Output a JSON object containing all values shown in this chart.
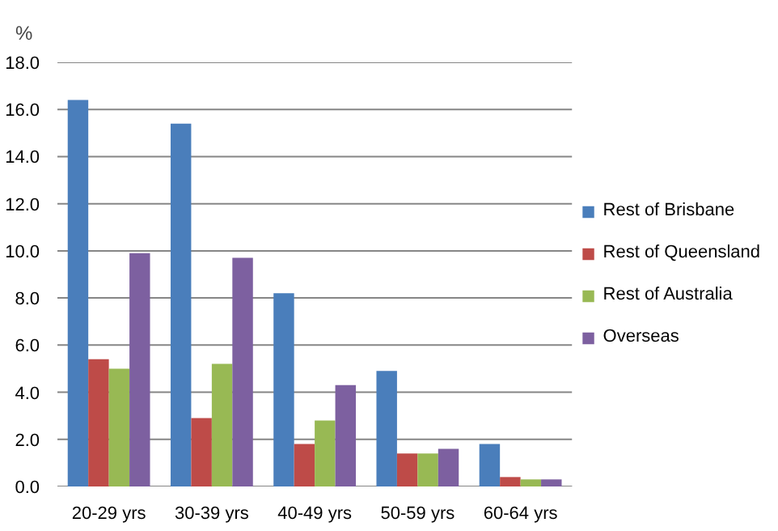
{
  "chart_data": {
    "type": "bar",
    "ylabel": "%",
    "categories": [
      "20-29 yrs",
      "30-39 yrs",
      "40-49 yrs",
      "50-59 yrs",
      "60-64 yrs"
    ],
    "series": [
      {
        "name": "Rest of Brisbane",
        "color": "#4a7ebb",
        "values": [
          16.4,
          15.4,
          8.2,
          4.9,
          1.8
        ]
      },
      {
        "name": "Rest of Queensland",
        "color": "#be4b48",
        "values": [
          5.4,
          2.9,
          1.8,
          1.4,
          0.4
        ]
      },
      {
        "name": "Rest of Australia",
        "color": "#98b954",
        "values": [
          5.0,
          5.2,
          2.8,
          1.4,
          0.3
        ]
      },
      {
        "name": "Overseas",
        "color": "#7d60a0",
        "values": [
          9.9,
          9.7,
          4.3,
          1.6,
          0.3
        ]
      }
    ],
    "ylim": [
      0,
      18
    ],
    "yticks": [
      {
        "value": 0,
        "label": "0.0"
      },
      {
        "value": 2,
        "label": "2.0"
      },
      {
        "value": 4,
        "label": "4.0"
      },
      {
        "value": 6,
        "label": "6.0"
      },
      {
        "value": 8,
        "label": "8.0"
      },
      {
        "value": 10,
        "label": "10.0"
      },
      {
        "value": 12,
        "label": "12.0"
      },
      {
        "value": 14,
        "label": "14.0"
      },
      {
        "value": 16,
        "label": "16.0"
      },
      {
        "value": 18,
        "label": "18.0"
      }
    ],
    "grid": "y",
    "legend": "right"
  }
}
